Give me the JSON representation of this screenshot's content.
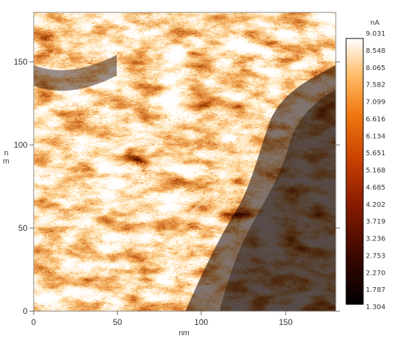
{
  "image": {
    "description_colormap": "afm-hot",
    "colors": {
      "dark": "#140200",
      "mid": "#a93300",
      "bright": "#ff8a1e",
      "white": "#ffffff"
    }
  },
  "x_axis": {
    "label": "nm",
    "ticks": [
      "0",
      "50",
      "100",
      "150"
    ],
    "range": [
      0,
      180
    ]
  },
  "y_axis": {
    "label_chars": [
      "n",
      "m"
    ],
    "ticks": [
      "0",
      "50",
      "100",
      "150"
    ],
    "range": [
      0,
      180
    ]
  },
  "colorbar": {
    "unit": "nA",
    "labels": [
      "9.031",
      "8.548",
      "8.065",
      "7.582",
      "7.099",
      "6.616",
      "6.134",
      "5.651",
      "5.168",
      "4.685",
      "4.202",
      "3.719",
      "3.236",
      "2.753",
      "2.270",
      "1.787",
      "1.304"
    ],
    "range": [
      1.304,
      9.031
    ]
  }
}
